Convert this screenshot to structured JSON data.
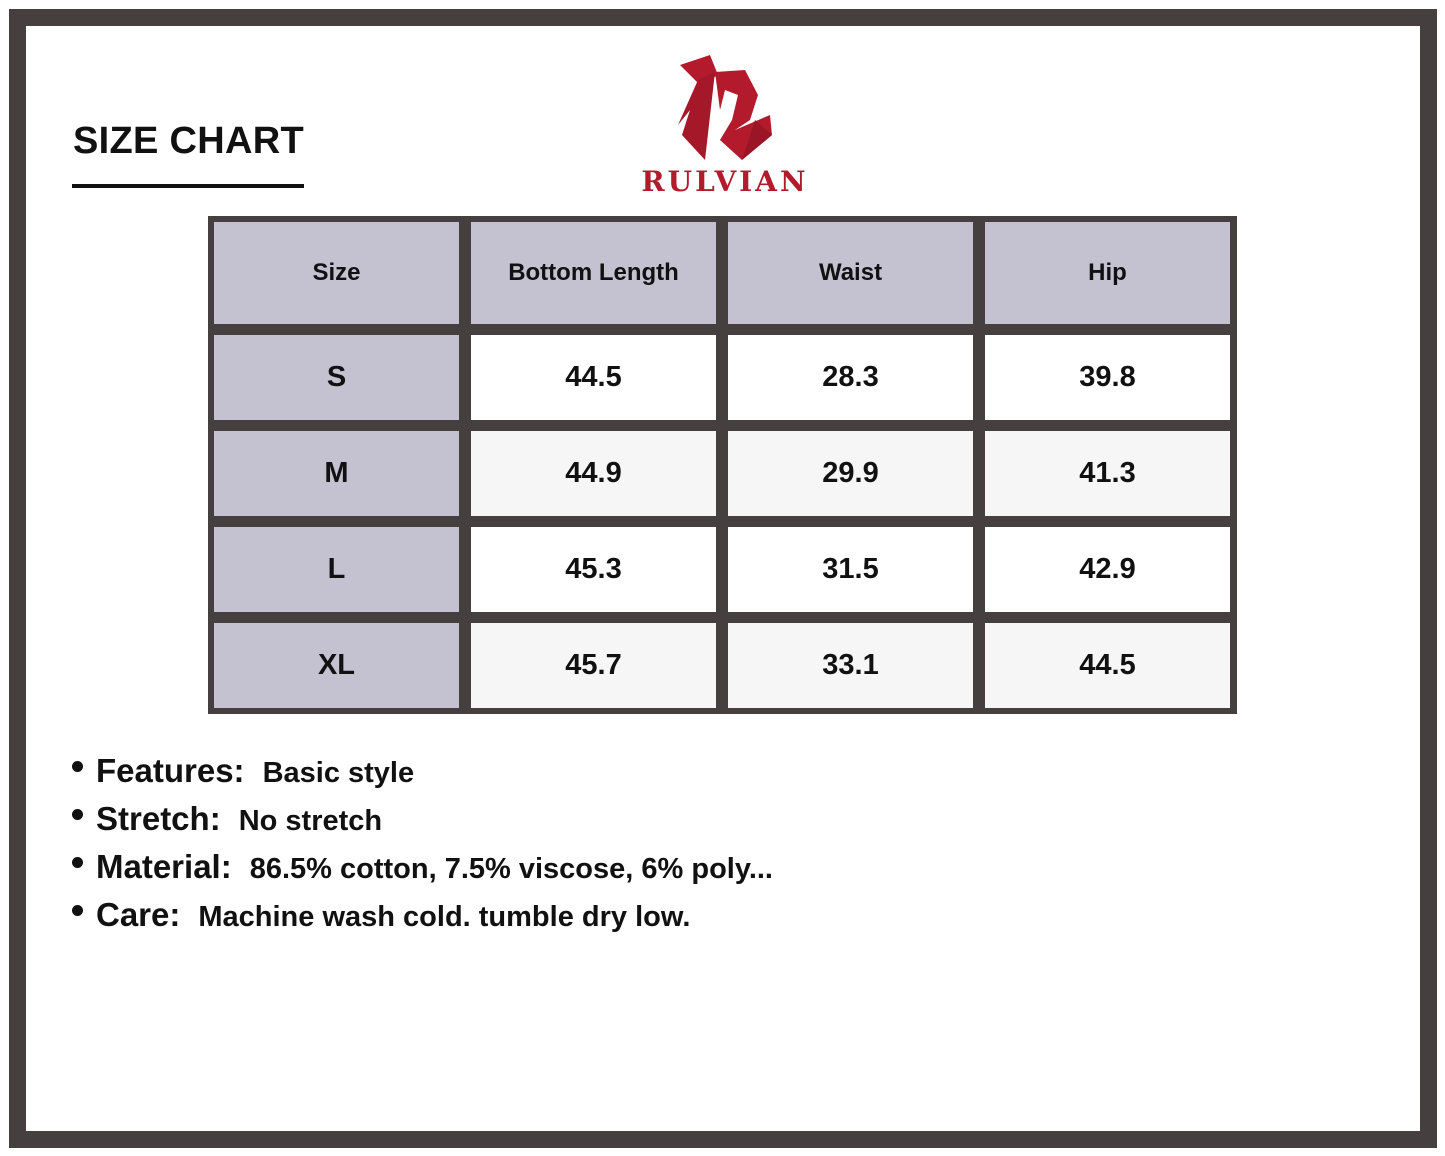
{
  "title": "SIZE CHART",
  "brand": {
    "name": "RULVIAN",
    "color": "#b31b2c"
  },
  "table": {
    "headers": [
      "Size",
      "Bottom Length",
      "Waist",
      "Hip"
    ],
    "rows": [
      [
        "S",
        "44.5",
        "28.3",
        "39.8"
      ],
      [
        "M",
        "44.9",
        "29.9",
        "41.3"
      ],
      [
        "L",
        "45.3",
        "31.5",
        "42.9"
      ],
      [
        "XL",
        "45.7",
        "33.1",
        "44.5"
      ]
    ]
  },
  "notes": [
    {
      "label": "Features:",
      "value": "Basic style"
    },
    {
      "label": "Stretch:",
      "value": "No stretch"
    },
    {
      "label": "Material:",
      "value": "86.5% cotton, 7.5% viscose, 6% poly..."
    },
    {
      "label": "Care:",
      "value": "Machine wash cold. tumble dry low."
    }
  ]
}
